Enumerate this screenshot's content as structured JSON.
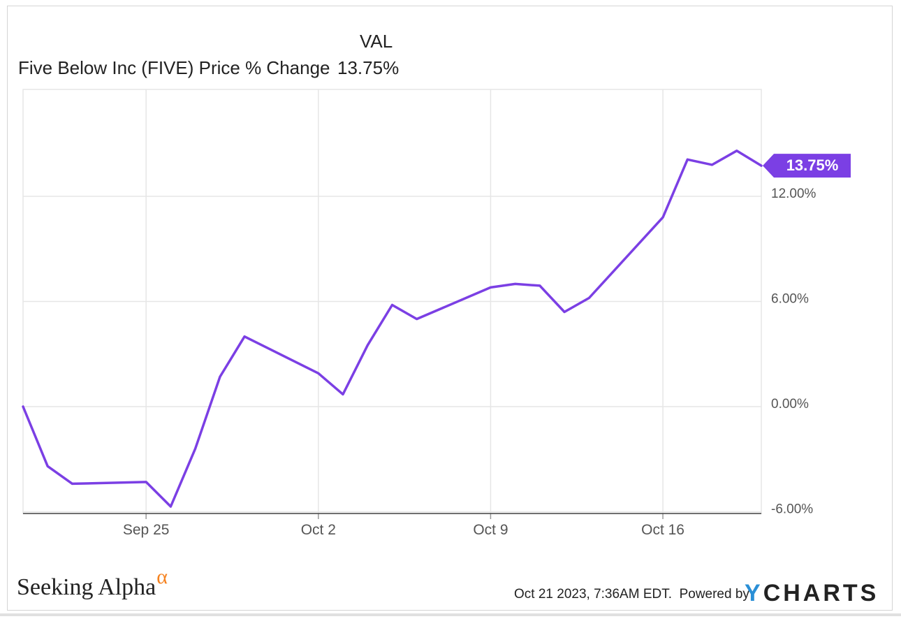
{
  "legend": {
    "column_header": "VAL",
    "series_label": "Five Below Inc (FIVE) Price % Change",
    "series_value": "13.75%"
  },
  "footer": {
    "brand": "Seeking Alpha",
    "brand_mark": "α",
    "timestamp": "Oct 21 2023, 7:36AM EDT.",
    "powered_by": "Powered by",
    "ycharts_y": "Y",
    "ycharts_rest": "CHARTS"
  },
  "colors": {
    "line": "#7b3fe4",
    "grid": "#e6e6e6",
    "axis_text": "#555555"
  },
  "chart_data": {
    "type": "line",
    "title": "",
    "xlabel": "",
    "ylabel": "",
    "y_ticks": [
      -6,
      0,
      6,
      12
    ],
    "y_tick_labels": [
      "-6.00%",
      "0.00%",
      "6.00%",
      "12.00%"
    ],
    "ylim": [
      -6.1,
      18.1
    ],
    "x_ticks": [
      "2023-09-25",
      "2023-10-02",
      "2023-10-09",
      "2023-10-16"
    ],
    "x_tick_labels": [
      "Sep 25",
      "Oct 2",
      "Oct 9",
      "Oct 16"
    ],
    "xlim": [
      "2023-09-20",
      "2023-10-20"
    ],
    "grid": true,
    "last_value_label": "13.75%",
    "series": [
      {
        "x": [
          "2023-09-20",
          "2023-09-21",
          "2023-09-22",
          "2023-09-25",
          "2023-09-26",
          "2023-09-27",
          "2023-09-28",
          "2023-09-29",
          "2023-10-02",
          "2023-10-03",
          "2023-10-04",
          "2023-10-05",
          "2023-10-06",
          "2023-10-09",
          "2023-10-10",
          "2023-10-11",
          "2023-10-12",
          "2023-10-13",
          "2023-10-16",
          "2023-10-17",
          "2023-10-18",
          "2023-10-19",
          "2023-10-20"
        ],
        "y": [
          0.0,
          -3.4,
          -4.4,
          -4.3,
          -5.7,
          -2.4,
          1.7,
          4.0,
          1.9,
          0.7,
          3.5,
          5.8,
          5.0,
          6.8,
          7.0,
          6.9,
          5.4,
          6.2,
          10.8,
          14.1,
          13.8,
          14.6,
          13.75
        ]
      }
    ]
  }
}
